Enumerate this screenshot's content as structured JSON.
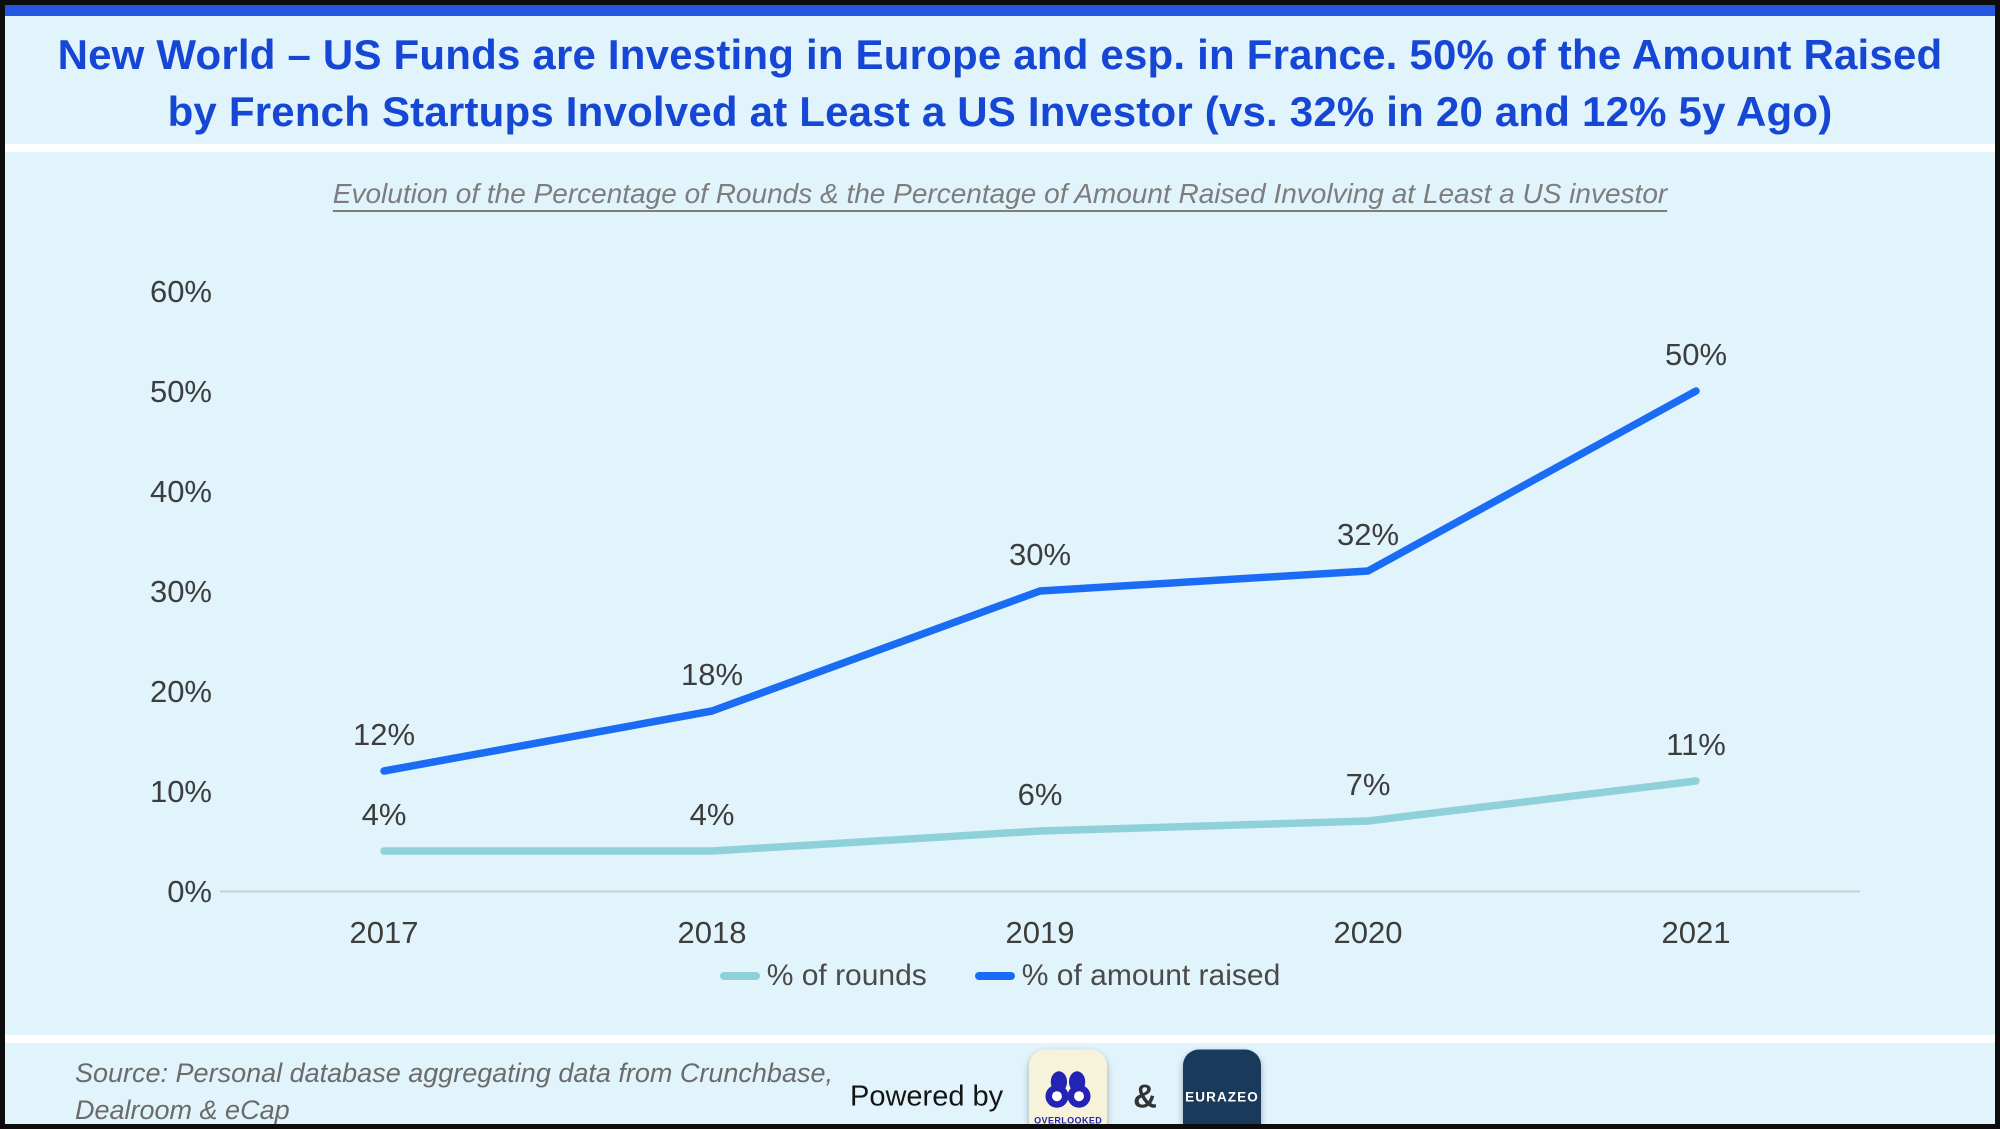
{
  "title": {
    "lines": [
      "New World – US Funds are Investing in Europe and esp. in France. 50% of the Amount Raised",
      "by French Startups Involved at Least a US Investor (vs. 32% in 20 and 12% 5y Ago)"
    ]
  },
  "chart_data": {
    "type": "line",
    "title": "Evolution of the Percentage of Rounds & the Percentage of Amount Raised Involving at Least a US investor",
    "categories": [
      "2017",
      "2018",
      "2019",
      "2020",
      "2021"
    ],
    "series": [
      {
        "name": "% of rounds",
        "color": "#8fd1d9",
        "values": [
          4,
          4,
          6,
          7,
          11
        ]
      },
      {
        "name": "% of amount raised",
        "color": "#1b6cf5",
        "values": [
          12,
          18,
          30,
          32,
          50
        ]
      }
    ],
    "ylim": [
      0,
      60
    ],
    "ytick_step": 10,
    "ytick_labels": [
      "0%",
      "10%",
      "20%",
      "30%",
      "40%",
      "50%",
      "60%"
    ],
    "data_label_format": "percent",
    "grid": false,
    "legend_position": "bottom"
  },
  "footer": {
    "source_lines": [
      "Source: Personal database aggregating data from Crunchbase,",
      "Dealroom & eCap"
    ],
    "powered_by": "Powered by",
    "ampersand": "&",
    "logos": [
      {
        "name": "OVERLOOKED"
      },
      {
        "name": "EURAZEO"
      }
    ]
  },
  "colors": {
    "background": "#e1f4fb",
    "frame": "#0d0d0d",
    "top_bar": "#2456df",
    "title": "#1646d4",
    "axis_text": "#3d3d3d",
    "subtitle_text": "#7d7d7d",
    "source_text": "#6b6b6b",
    "axis_line": "#c8ced3",
    "overlooked_bg": "#f6f3da",
    "overlooked_ink": "#2424b4",
    "eurazeo_bg": "#1a3a5c",
    "eurazeo_text": "#ffffff"
  }
}
